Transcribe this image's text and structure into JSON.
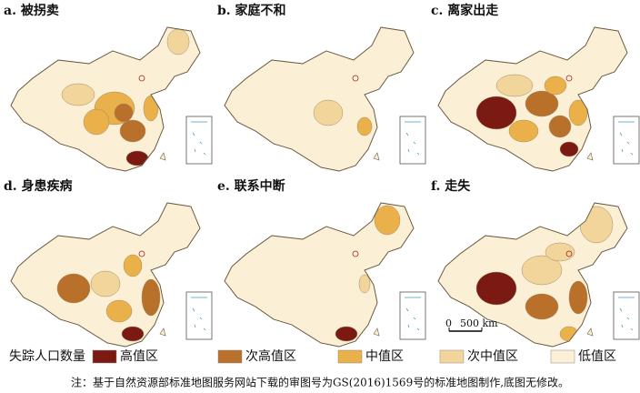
{
  "panels": [
    {
      "label": "a. 被拐卖"
    },
    {
      "label": "b. 家庭不和"
    },
    {
      "label": "c. 离家出走"
    },
    {
      "label": "d. 身患疾病"
    },
    {
      "label": "e. 联系中断"
    },
    {
      "label": "f. 走失"
    }
  ],
  "legend": {
    "title": "失踪人口数量",
    "items": [
      "高值区",
      "次高值区",
      "中值区",
      "次中值区",
      "低值区"
    ]
  },
  "scale_bar": {
    "start": "0",
    "end": "500 km"
  },
  "note": "注：基于自然资源部标准地图服务网站下载的审图号为GS(2016)1569号的标准地图制作,底图无修改。"
}
